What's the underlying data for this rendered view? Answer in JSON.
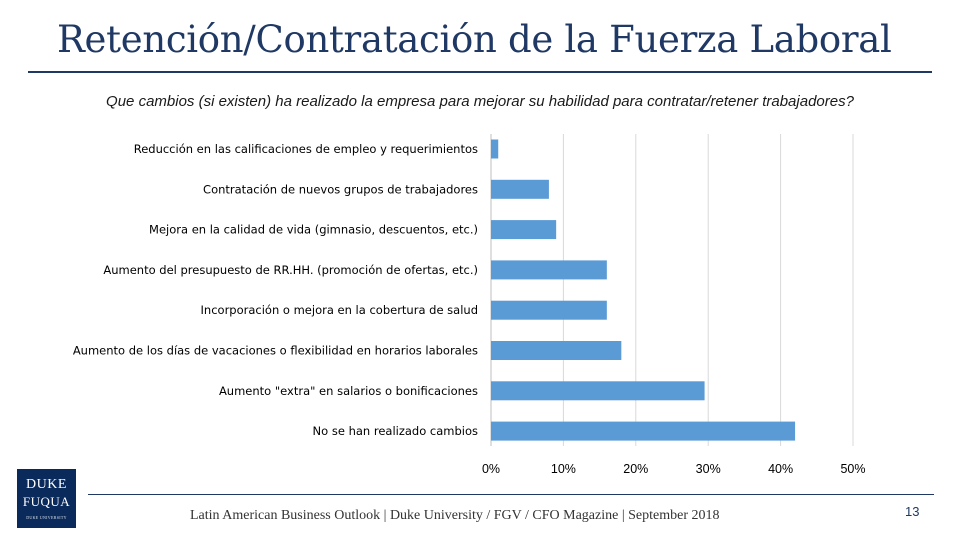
{
  "slide": {
    "title": "Retención/Contratación de la Fuerza Laboral",
    "question": "Que cambios (si existen) ha realizado la empresa para mejorar su habilidad para contratar/retener trabajadores?",
    "footer": "Latin American Business Outlook | Duke University / FGV / CFO Magazine | September 2018",
    "page_number": "13",
    "logo": {
      "line1": "DUKE",
      "line2": "FUQUA",
      "line3": "DUKE UNIVERSITY"
    }
  },
  "colors": {
    "bar": "#5b9bd5",
    "grid": "#d9d9d9",
    "title": "#1f3864"
  },
  "chart_data": {
    "type": "bar",
    "orientation": "horizontal",
    "title": "",
    "xlabel": "",
    "ylabel": "",
    "xlim": [
      0,
      50
    ],
    "ticks": [
      0,
      10,
      20,
      30,
      40,
      50
    ],
    "tick_labels": [
      "0%",
      "10%",
      "20%",
      "30%",
      "40%",
      "50%"
    ],
    "grid": true,
    "categories": [
      "Reducción en las calificaciones de empleo y requerimientos",
      "Contratación de nuevos grupos de trabajadores",
      "Mejora en la calidad de vida (gimnasio, descuentos, etc.)",
      "Aumento del presupuesto de RR.HH. (promoción de ofertas, etc.)",
      "Incorporación o mejora en la cobertura de salud",
      "Aumento de los días de vacaciones o flexibilidad en horarios laborales",
      "Aumento \"extra\" en salarios o bonificaciones",
      "No se han realizado cambios"
    ],
    "values": [
      1,
      8,
      9,
      16,
      16,
      18,
      29.5,
      42
    ]
  }
}
